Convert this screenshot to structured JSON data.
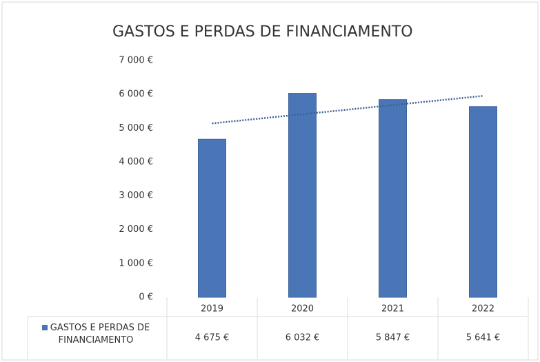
{
  "chart_data": {
    "type": "bar",
    "title": "GASTOS E PERDAS DE FINANCIAMENTO",
    "categories": [
      "2019",
      "2020",
      "2021",
      "2022"
    ],
    "series": [
      {
        "name": "GASTOS E PERDAS DE FINANCIAMENTO",
        "color": "#4a76b8",
        "values": [
          4675,
          6032,
          5847,
          5641
        ],
        "value_labels": [
          "4 675 €",
          "6 032 €",
          "5 847 €",
          "5 641 €"
        ]
      }
    ],
    "ylim": [
      0,
      7000
    ],
    "yticks": [
      {
        "value": 0,
        "label": "0 €"
      },
      {
        "value": 1000,
        "label": "1 000 €"
      },
      {
        "value": 2000,
        "label": "2 000 €"
      },
      {
        "value": 3000,
        "label": "3 000 €"
      },
      {
        "value": 4000,
        "label": "4 000 €"
      },
      {
        "value": 5000,
        "label": "5 000 €"
      },
      {
        "value": 6000,
        "label": "6 000 €"
      },
      {
        "value": 7000,
        "label": "7 000 €"
      }
    ],
    "grid": false,
    "trendline": "linear",
    "data_table": true
  }
}
